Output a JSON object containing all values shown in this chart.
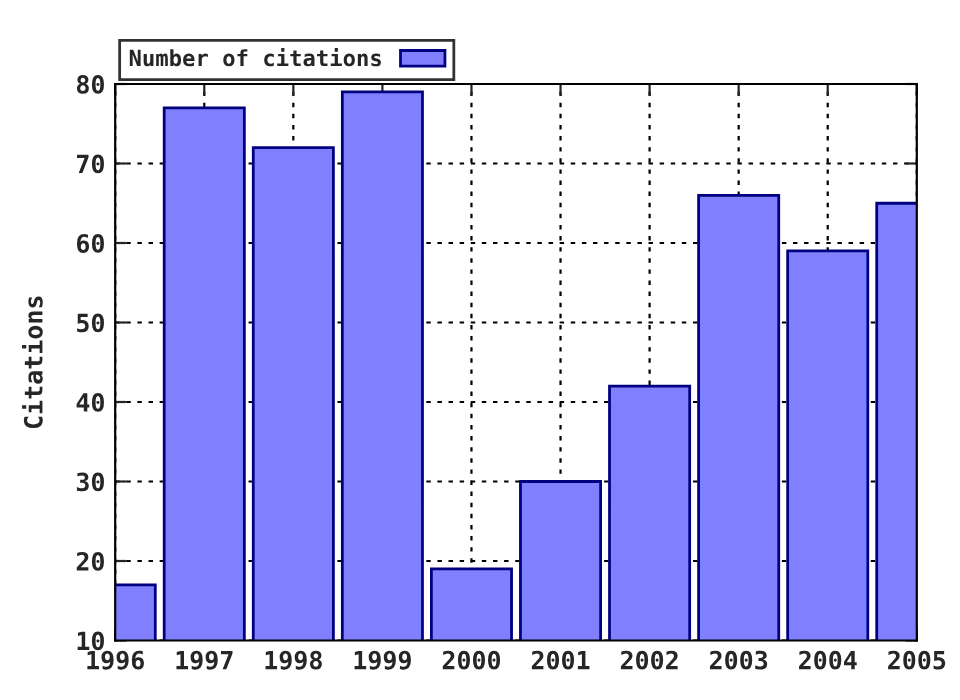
{
  "chart_data": {
    "type": "bar",
    "ylabel": "Citations",
    "x": [
      1996,
      1997,
      1998,
      1999,
      2000,
      2001,
      2002,
      2003,
      2004,
      2005
    ],
    "series": [
      {
        "name": "Number of citations",
        "color": "#8080ff",
        "values": [
          17,
          77,
          72,
          79,
          19,
          30,
          42,
          66,
          59,
          65
        ]
      }
    ],
    "xlim": [
      1996,
      2005
    ],
    "xticks": [
      1996,
      1997,
      1998,
      1999,
      2000,
      2001,
      2002,
      2003,
      2004,
      2005
    ],
    "ylim": [
      10,
      80
    ],
    "yticks": [
      10,
      20,
      30,
      40,
      50,
      60,
      70,
      80
    ],
    "grid": true,
    "legend": "top left"
  }
}
